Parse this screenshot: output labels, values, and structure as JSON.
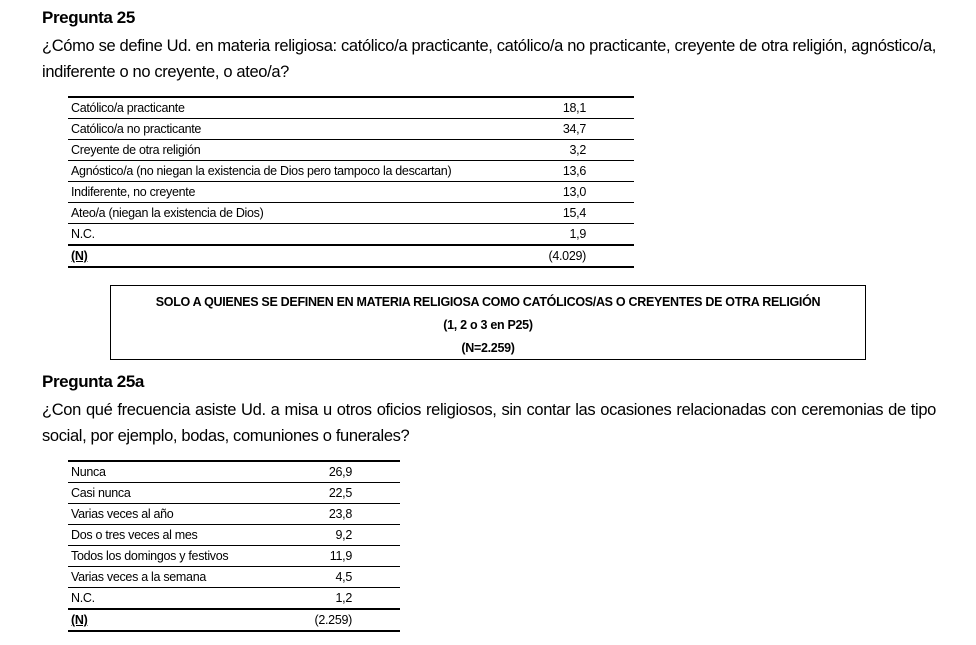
{
  "sections": [
    {
      "title": "Pregunta 25",
      "question": "¿Cómo se define Ud. en materia religiosa: católico/a practicante, católico/a no practicante, creyente de otra religión, agnóstico/a, indiferente o no creyente, o ateo/a?",
      "table": {
        "rows": [
          [
            "Católico/a practicante",
            "18,1"
          ],
          [
            "Católico/a no practicante",
            "34,7"
          ],
          [
            "Creyente de otra religión",
            "3,2"
          ],
          [
            "Agnóstico/a (no niegan la existencia de Dios pero tampoco la descartan)",
            "13,6"
          ],
          [
            "Indiferente, no creyente",
            "13,0"
          ],
          [
            "Ateo/a (niegan la existencia de Dios)",
            "15,4"
          ],
          [
            "N.C.",
            "1,9"
          ],
          [
            "(N)",
            "(4.029)"
          ]
        ]
      }
    },
    {
      "title": "Pregunta 25a",
      "question": "¿Con qué frecuencia asiste Ud. a misa u otros oficios religiosos, sin contar las ocasiones relacionadas con ceremonias de tipo social, por ejemplo, bodas, comuniones o funerales?",
      "table": {
        "rows": [
          [
            "Nunca",
            "26,9"
          ],
          [
            "Casi nunca",
            "22,5"
          ],
          [
            "Varias veces al año",
            "23,8"
          ],
          [
            "Dos o tres veces al mes",
            "9,2"
          ],
          [
            "Todos los domingos y festivos",
            "11,9"
          ],
          [
            "Varias veces a la semana",
            "4,5"
          ],
          [
            "N.C.",
            "1,2"
          ],
          [
            "(N)",
            "(2.259)"
          ]
        ]
      }
    }
  ],
  "filter_box": {
    "lines": [
      "SOLO A QUIENES SE DEFINEN EN MATERIA RELIGIOSA COMO CATÓLICOS/AS O CREYENTES DE OTRA RELIGIÓN",
      "(1, 2 o 3 en P25)",
      "(N=2.259)"
    ]
  }
}
